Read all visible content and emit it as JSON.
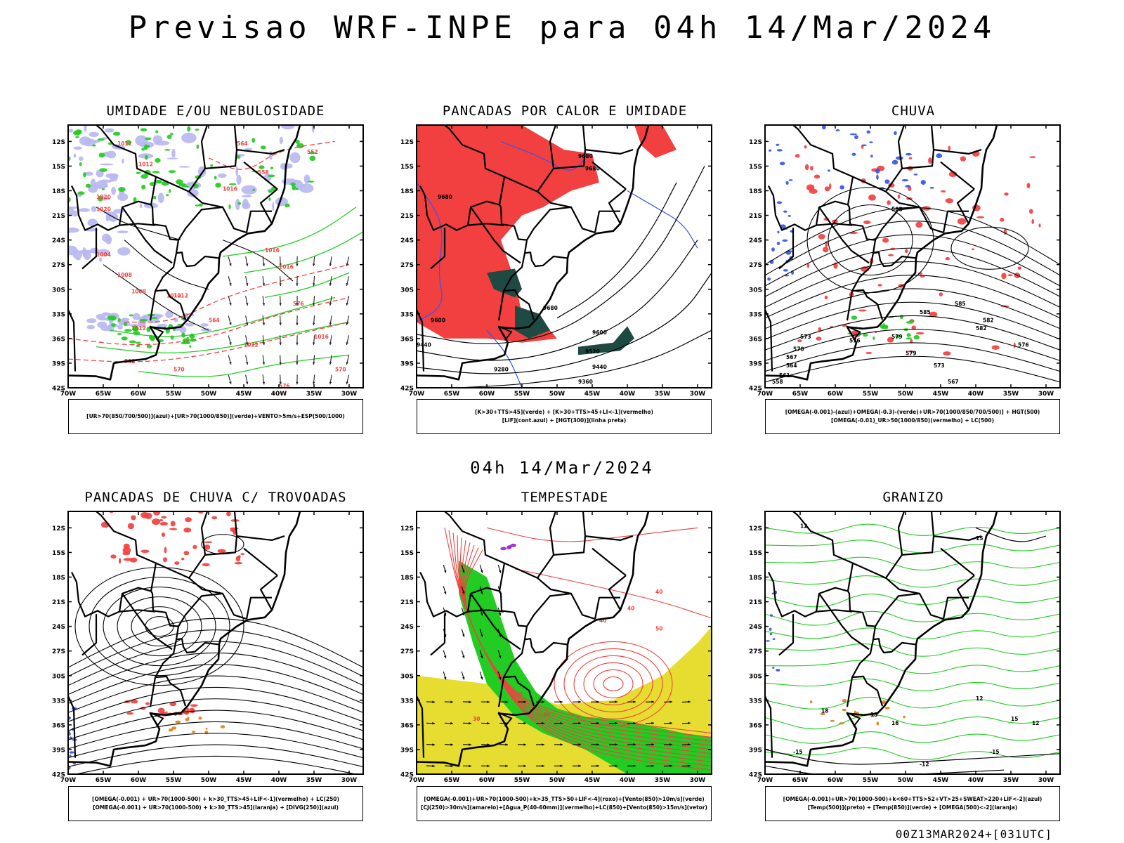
{
  "title": "Previsao WRF-INPE  para 04h 14/Mar/2024",
  "subtitle": "04h 14/Mar/2024",
  "footer": "00Z13MAR2024+[031UTC]",
  "axes": {
    "lat_labels": [
      "12S",
      "15S",
      "18S",
      "21S",
      "24S",
      "27S",
      "30S",
      "33S",
      "36S",
      "39S",
      "42S"
    ],
    "lon_labels": [
      "70W",
      "65W",
      "60W",
      "55W",
      "50W",
      "45W",
      "40W",
      "35W",
      "30W"
    ]
  },
  "colors": {
    "red": "#f24040",
    "green": "#22cc22",
    "blue": "#3355ee",
    "lavender": "#b8b8f0",
    "yellow": "#e6dd30",
    "darkteal": "#1f4a44",
    "purple": "#a020d0",
    "orange": "#e08020"
  },
  "panels": [
    {
      "id": "umidade",
      "title": "UMIDADE E/OU NEBULOSIDADE",
      "legend": [
        "[UR>70(850/700/500)](azul)+[UR>70(1000/850)](verde)+VENTO>5m/s+ESP(500/1000)"
      ],
      "labels": [
        "1012",
        "1012",
        "1016",
        "1020",
        "1020",
        "1004",
        "1008",
        "1008",
        "1012",
        "1016",
        "1016",
        "1016",
        "1012",
        "1012",
        "1012",
        "576",
        "570",
        "564",
        "558",
        "552",
        "582",
        "570",
        "576",
        "564"
      ]
    },
    {
      "id": "pancadas-calor",
      "title": "PANCADAS POR CALOR E UMIDADE",
      "legend": [
        "[K>30+TTS>45](verde) + [K>30+TTS>45+LI<-1](vermelho)",
        "[LIF](cont.azul) + [HGT(300)](linha preta)"
      ],
      "labels": [
        "9680",
        "9680",
        "9680",
        "9600",
        "9520",
        "9440",
        "9360",
        "9280",
        "9440",
        "9600",
        "9680"
      ]
    },
    {
      "id": "chuva",
      "title": "CHUVA",
      "legend": [
        "[OMEGA(-0.001)-(azul)+OMEGA(-0.3)-(verde)+UR>70(1000/850/700/500)] + HGT(500)",
        "[OMEGA(-0.01)_UR>50(1000/850)(vermelho) + LC(500)"
      ],
      "labels": [
        "588",
        "585",
        "582",
        "579",
        "576",
        "573",
        "570",
        "567",
        "564",
        "561",
        "558",
        "585",
        "582",
        "579",
        "576",
        "573",
        "567"
      ]
    },
    {
      "id": "pancadas-trovoadas",
      "title": "PANCADAS DE CHUVA C/ TROVOADAS",
      "legend": [
        "[OMEGA(-0.001) + UR>70(1000-500) + k>30_TTS>45+LIF<-1](vermelho) + LC(250)",
        "[OMEGA(-0.001) + UR>70(1000-500) + k>30_TTS>45](laranja) + [DIVG(250)](azul)"
      ],
      "labels": []
    },
    {
      "id": "tempestade",
      "title": "TEMPESTADE",
      "legend": [
        "[OMEGA(-0.001)+UR>70(1000-500)+k>35_TTS>50+LIF<-4](roxo)+[Vento(850)>10m/s](verde)",
        "[CJ(250)>30m/s](amarelo)+[Agua_P(40-60mm)](vermelho)+LC(850)+[Vento(850)>15m/s](vetor)"
      ],
      "labels": [
        "40",
        "40",
        "50",
        "40",
        "30",
        "40",
        "50"
      ]
    },
    {
      "id": "granizo",
      "title": "GRANIZO",
      "legend": [
        "[OMEGA(-0.001)+UR>70(1000-500)+k<60+TTS>52+VT>25+SWEAT>220+LIF<-2](azul)",
        "[Temp(500)](preto) + [Temp(850)](verde) + [OMEGA(500)<-2](laranja)"
      ],
      "labels": [
        "12",
        "15",
        "18",
        "15",
        "12",
        "-15",
        "-12",
        "-15",
        "16",
        "12",
        "15"
      ]
    }
  ]
}
